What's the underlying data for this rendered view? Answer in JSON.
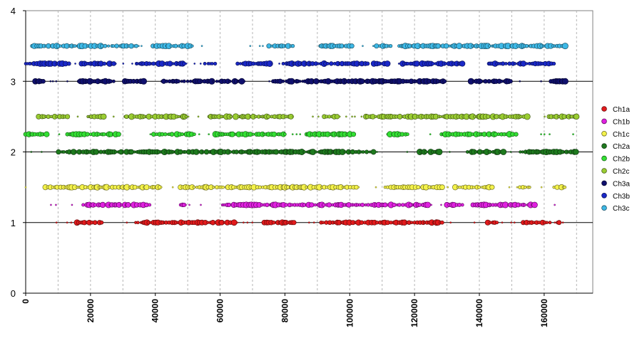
{
  "chart_data": {
    "type": "scatter",
    "xlim": [
      0,
      175000
    ],
    "ylim": [
      0,
      4
    ],
    "x_ticks": [
      0,
      20000,
      40000,
      60000,
      80000,
      100000,
      120000,
      140000,
      160000
    ],
    "y_ticks": [
      0,
      1,
      2,
      3,
      4
    ],
    "grid": {
      "y_major": "solid",
      "x_major": "dotted"
    },
    "legend_position": "right",
    "marker": "circle",
    "marker_size": "varies",
    "series": [
      {
        "name": "Ch1a",
        "y": 1.0,
        "color": "#e31a1c",
        "x_range": [
          4000,
          170000
        ]
      },
      {
        "name": "Ch1b",
        "y": 1.25,
        "color": "#e020e0",
        "x_range": [
          2000,
          166000
        ]
      },
      {
        "name": "Ch1c",
        "y": 1.5,
        "color": "#f4f24a",
        "x_range": [
          0,
          169000
        ]
      },
      {
        "name": "Ch2a",
        "y": 2.0,
        "color": "#1e7a1e",
        "x_range": [
          0,
          170000
        ]
      },
      {
        "name": "Ch2b",
        "y": 2.25,
        "color": "#33e033",
        "x_range": [
          0,
          170000
        ]
      },
      {
        "name": "Ch2c",
        "y": 2.5,
        "color": "#9acd32",
        "x_range": [
          4000,
          170000
        ]
      },
      {
        "name": "Ch3a",
        "y": 3.0,
        "color": "#10106e",
        "x_range": [
          3000,
          167000
        ]
      },
      {
        "name": "Ch3b",
        "y": 3.25,
        "color": "#1a28c8",
        "x_range": [
          0,
          168000
        ]
      },
      {
        "name": "Ch3c",
        "y": 3.5,
        "color": "#3db8e6",
        "x_range": [
          2000,
          170000
        ]
      }
    ]
  }
}
